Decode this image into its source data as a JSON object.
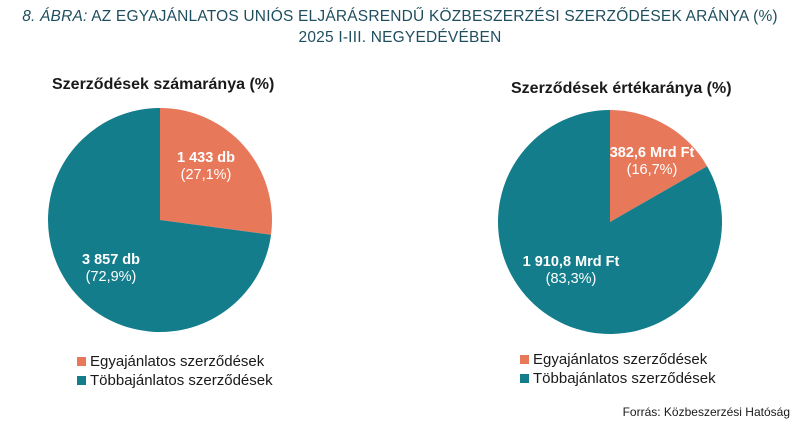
{
  "figure": {
    "title_prefix": "8. ÁBRA:",
    "title_line1": "AZ EGYAJÁNLATOS UNIÓS ELJÁRÁSRENDŰ KÖZBESZERZÉSI SZERZŐDÉSEK ARÁNYA (%)",
    "title_line2": "2025 I-III. NEGYEDÉVÉBEN",
    "source": "Forrás: Közbeszerzési Hatóság"
  },
  "colors": {
    "single_bid": "#e8785a",
    "multi_bid": "#147d8c"
  },
  "chart_data": [
    {
      "type": "pie",
      "title": "Szerződések számaránya (%)",
      "slices": [
        {
          "name": "Egyajánlatos szerződések",
          "value": 27.1,
          "label": "1 433 db",
          "pct_label": "(27,1%)"
        },
        {
          "name": "Többajánlatos szerződések",
          "value": 72.9,
          "label": "3 857 db",
          "pct_label": "(72,9%)"
        }
      ],
      "legend": [
        "Egyajánlatos szerződések",
        "Többajánlatos szerződések"
      ],
      "legend_position": "bottom"
    },
    {
      "type": "pie",
      "title": "Szerződések értékaránya (%)",
      "slices": [
        {
          "name": "Egyajánlatos szerződések",
          "value": 16.7,
          "label": "382,6 Mrd Ft",
          "pct_label": "(16,7%)"
        },
        {
          "name": "Többajánlatos szerződések",
          "value": 83.3,
          "label": "1 910,8 Mrd Ft",
          "pct_label": "(83,3%)"
        }
      ],
      "legend": [
        "Egyajánlatos szerződések",
        "Többajánlatos szerződések"
      ],
      "legend_position": "bottom"
    }
  ]
}
